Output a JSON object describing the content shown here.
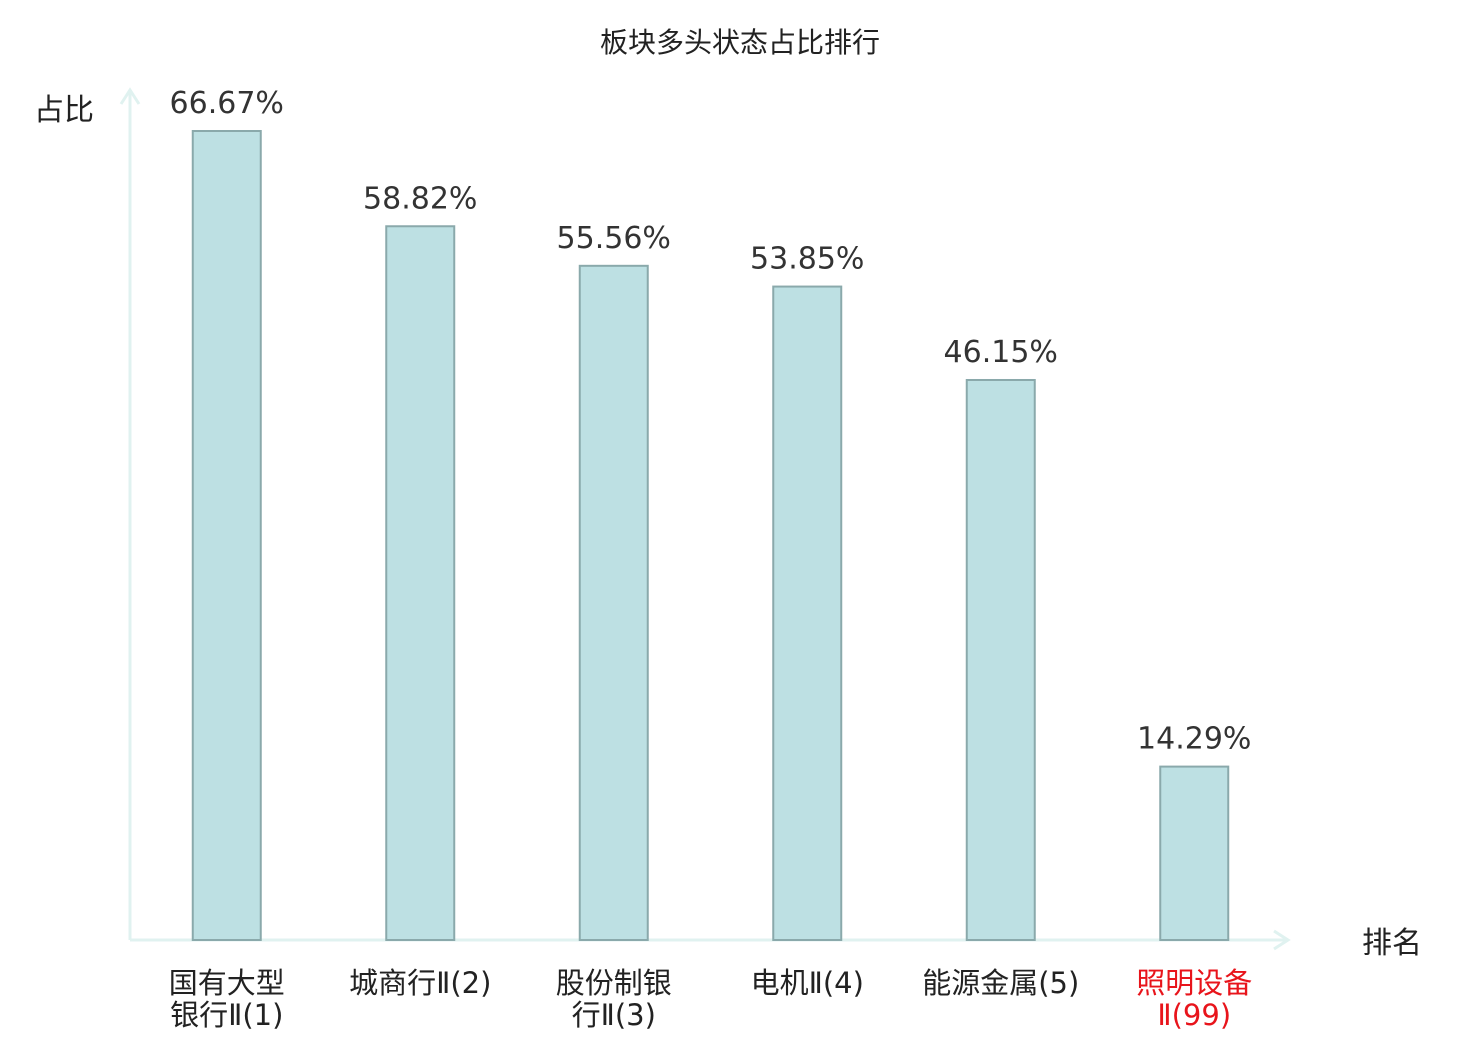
{
  "chart_data": {
    "type": "bar",
    "title": "板块多头状态占比排行",
    "xlabel": "排名",
    "ylabel": "占比",
    "categories": [
      [
        "国有大型",
        "银行Ⅱ(1)"
      ],
      [
        "城商行Ⅱ(2)"
      ],
      [
        "股份制银",
        "行Ⅱ(3)"
      ],
      [
        "电机Ⅱ(4)"
      ],
      [
        "能源金属(5)"
      ],
      [
        "照明设备",
        "Ⅱ(99)"
      ]
    ],
    "values": [
      66.67,
      58.82,
      55.56,
      53.85,
      46.15,
      14.29
    ],
    "value_labels": [
      "66.67%",
      "58.82%",
      "55.56%",
      "53.85%",
      "46.15%",
      "14.29%"
    ],
    "highlight_index": 5,
    "ylim": [
      0,
      70
    ],
    "grid": false,
    "colors": {
      "bar_fill": "#bde0e3",
      "bar_stroke": "#8aa9ab",
      "axis": "#e0f2f0",
      "highlight_text": "#e8141b",
      "text": "#222222"
    }
  }
}
